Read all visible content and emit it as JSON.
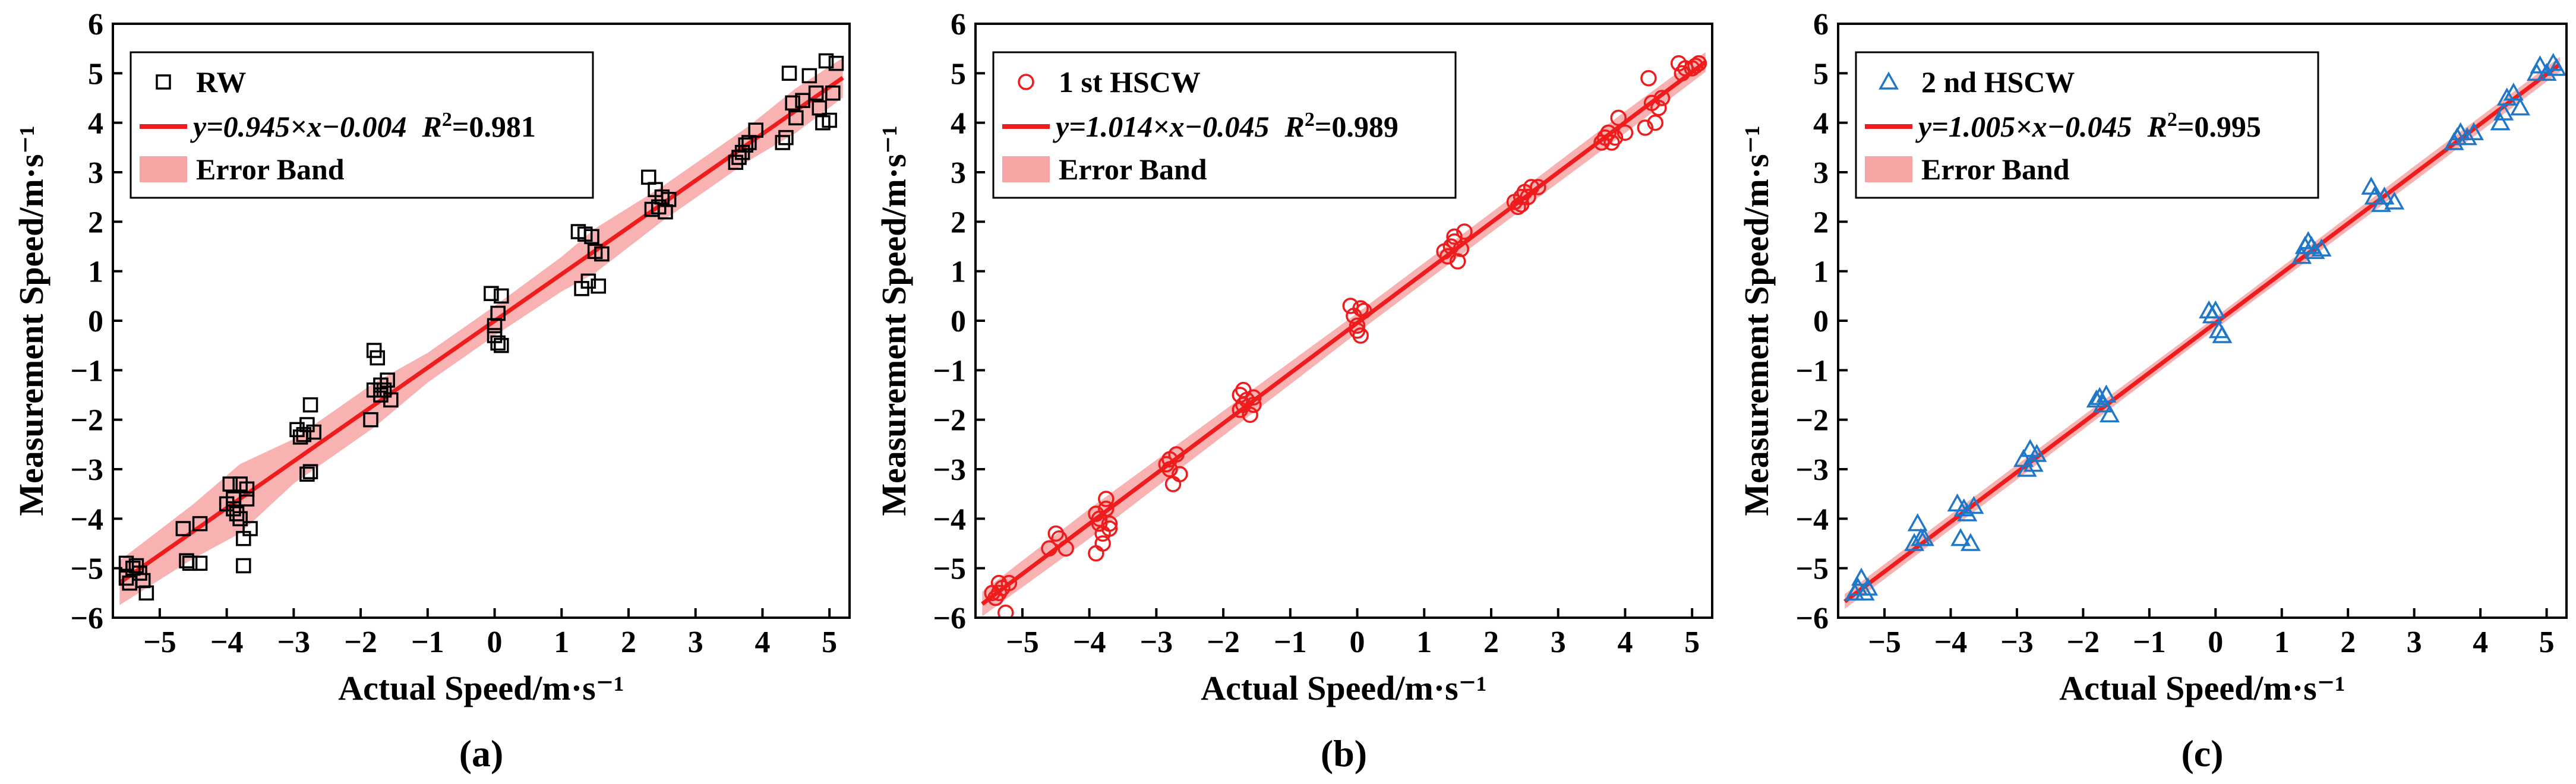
{
  "chart_data": [
    {
      "type": "scatter",
      "panel_label": "(a)",
      "xlabel": "Actual Speed/m·s⁻¹",
      "ylabel": "Measurement Speed/m·s⁻¹",
      "xlim": [
        -5.7,
        5.3
      ],
      "ylim": [
        -6,
        6
      ],
      "xticks": [
        -5,
        -4,
        -3,
        -2,
        -1,
        0,
        1,
        2,
        3,
        4,
        5
      ],
      "yticks": [
        -6,
        -5,
        -4,
        -3,
        -2,
        -1,
        0,
        1,
        2,
        3,
        4,
        5,
        6
      ],
      "grid": false,
      "legend_position": "top-left",
      "marker": "square",
      "colors": {
        "points": "#000000",
        "fit": "#ee1c1c",
        "band": "#f7a5a5"
      },
      "legend": {
        "points": "RW",
        "fit_prefix": "y=0.945×x−0.004",
        "r2_value": "=0.981",
        "band": "Error Band"
      },
      "fit": {
        "slope": 0.945,
        "intercept": -0.004,
        "r2": 0.981
      },
      "band_halfwidth": [
        [
          -5.6,
          0.45
        ],
        [
          -4.5,
          0.55
        ],
        [
          -3.8,
          0.7
        ],
        [
          -3.0,
          0.45
        ],
        [
          -1.8,
          0.45
        ],
        [
          -1.0,
          0.3
        ],
        [
          0.0,
          0.3
        ],
        [
          1.0,
          0.35
        ],
        [
          1.5,
          0.45
        ],
        [
          2.5,
          0.35
        ],
        [
          3.8,
          0.35
        ],
        [
          4.5,
          0.45
        ],
        [
          5.2,
          0.4
        ]
      ],
      "series": [
        {
          "name": "RW",
          "x": [
            -5.5,
            -5.4,
            -5.35,
            -5.3,
            -5.45,
            -5.25,
            -5.5,
            -5.2,
            -4.65,
            -4.55,
            -4.4,
            -4.6,
            -4.4,
            -3.95,
            -3.9,
            -3.85,
            -3.8,
            -3.7,
            -3.75,
            -3.65,
            -4.0,
            -3.9,
            -3.8,
            -3.7,
            -3.75,
            -2.95,
            -2.85,
            -2.8,
            -2.75,
            -2.9,
            -2.7,
            -2.8,
            -2.75,
            -1.8,
            -1.75,
            -1.7,
            -1.65,
            -1.6,
            -1.55,
            -1.8,
            -1.7,
            -1.85,
            -0.05,
            0.0,
            0.05,
            0.1,
            0.0,
            0.1,
            0.05,
            1.25,
            1.35,
            1.45,
            1.5,
            1.6,
            1.4,
            1.55,
            1.3,
            2.3,
            2.4,
            2.45,
            2.55,
            2.6,
            2.5,
            2.35,
            3.6,
            3.7,
            3.75,
            3.65,
            3.8,
            3.9,
            4.3,
            4.35,
            4.4,
            4.45,
            4.5,
            4.6,
            4.7,
            4.8,
            4.85,
            4.9,
            5.0,
            5.1,
            4.95,
            5.05
          ],
          "y": [
            -5.2,
            -5.0,
            -4.95,
            -5.1,
            -5.3,
            -5.25,
            -4.9,
            -5.5,
            -4.2,
            -4.9,
            -4.1,
            -4.85,
            -4.9,
            -3.3,
            -3.6,
            -3.9,
            -3.3,
            -3.4,
            -4.4,
            -4.2,
            -3.7,
            -3.8,
            -4.0,
            -3.6,
            -4.95,
            -2.2,
            -2.3,
            -2.1,
            -1.7,
            -2.35,
            -2.25,
            -3.1,
            -3.05,
            -0.6,
            -0.75,
            -1.3,
            -1.4,
            -1.2,
            -1.6,
            -1.4,
            -1.5,
            -2.0,
            0.55,
            -0.1,
            0.15,
            0.5,
            -0.3,
            -0.5,
            -0.45,
            1.8,
            1.75,
            1.7,
            1.4,
            1.35,
            0.8,
            0.7,
            0.65,
            2.9,
            2.65,
            2.3,
            2.2,
            2.45,
            2.5,
            2.25,
            3.2,
            3.4,
            3.55,
            3.3,
            3.6,
            3.85,
            3.6,
            3.7,
            5.0,
            4.4,
            4.1,
            4.45,
            4.95,
            4.6,
            4.3,
            4.0,
            4.05,
            5.2,
            5.25,
            4.6
          ]
        }
      ]
    },
    {
      "type": "scatter",
      "panel_label": "(b)",
      "xlabel": "Actual Speed/m·s⁻¹",
      "ylabel": "Measurement Speed/m·s⁻¹",
      "xlim": [
        -5.7,
        5.3
      ],
      "ylim": [
        -6,
        6
      ],
      "xticks": [
        -5,
        -4,
        -3,
        -2,
        -1,
        0,
        1,
        2,
        3,
        4,
        5
      ],
      "yticks": [
        -6,
        -5,
        -4,
        -3,
        -2,
        -1,
        0,
        1,
        2,
        3,
        4,
        5,
        6
      ],
      "grid": false,
      "legend_position": "top-left",
      "marker": "circle",
      "colors": {
        "points": "#ee1c1c",
        "fit": "#ee1c1c",
        "band": "#f7a5a5"
      },
      "legend": {
        "points": "1 st HSCW",
        "fit_prefix": "y=1.014×x−0.045",
        "r2_value": "=0.989",
        "band": "Error Band"
      },
      "fit": {
        "slope": 1.014,
        "intercept": -0.045,
        "r2": 0.989
      },
      "band_halfwidth": [
        [
          -5.6,
          0.25
        ],
        [
          -4.0,
          0.3
        ],
        [
          -2.0,
          0.25
        ],
        [
          0.0,
          0.2
        ],
        [
          2.0,
          0.2
        ],
        [
          4.0,
          0.22
        ],
        [
          5.2,
          0.2
        ]
      ],
      "series": [
        {
          "name": "1 st HSCW",
          "x": [
            -5.45,
            -5.4,
            -5.35,
            -5.3,
            -5.25,
            -5.2,
            -5.35,
            -4.6,
            -4.45,
            -4.35,
            -4.5,
            -3.9,
            -3.85,
            -3.8,
            -3.75,
            -3.7,
            -3.9,
            -3.8,
            -3.75,
            -3.7,
            -3.85,
            -2.85,
            -2.8,
            -2.75,
            -2.7,
            -2.65,
            -2.8,
            -1.75,
            -1.7,
            -1.65,
            -1.6,
            -1.55,
            -1.7,
            -1.75,
            -1.55,
            -0.1,
            -0.05,
            0.0,
            0.05,
            0.1,
            0.05,
            0.0,
            1.3,
            1.35,
            1.4,
            1.45,
            1.5,
            1.55,
            1.45,
            1.6,
            2.35,
            2.4,
            2.45,
            2.5,
            2.55,
            2.6,
            2.7,
            2.45,
            3.65,
            3.7,
            3.75,
            3.8,
            3.85,
            3.9,
            4.0,
            4.3,
            4.35,
            4.4,
            4.45,
            4.5,
            4.55,
            4.8,
            4.85,
            4.9,
            5.0,
            5.05,
            5.1
          ],
          "y": [
            -5.5,
            -5.6,
            -5.3,
            -5.4,
            -5.9,
            -5.3,
            -5.5,
            -4.6,
            -4.4,
            -4.6,
            -4.3,
            -3.9,
            -4.1,
            -4.3,
            -3.8,
            -4.2,
            -4.7,
            -4.5,
            -3.6,
            -4.1,
            -4.0,
            -2.9,
            -2.8,
            -3.3,
            -2.7,
            -3.1,
            -3.0,
            -1.5,
            -1.7,
            -1.6,
            -1.9,
            -1.7,
            -1.4,
            -1.8,
            -1.55,
            0.3,
            0.1,
            -0.1,
            -0.3,
            0.2,
            0.25,
            -0.2,
            1.4,
            1.3,
            1.5,
            1.6,
            1.2,
            1.45,
            1.7,
            1.8,
            2.4,
            2.3,
            2.5,
            2.6,
            2.5,
            2.7,
            2.7,
            2.35,
            3.6,
            3.7,
            3.8,
            3.6,
            3.7,
            4.1,
            3.8,
            3.9,
            4.9,
            4.4,
            4.0,
            4.3,
            4.5,
            5.2,
            5.0,
            5.1,
            5.1,
            5.15,
            5.2
          ]
        }
      ]
    },
    {
      "type": "scatter",
      "panel_label": "(c)",
      "xlabel": "Actual Speed/m·s⁻¹",
      "ylabel": "Measurement Speed/m·s⁻¹",
      "xlim": [
        -5.7,
        5.3
      ],
      "ylim": [
        -6,
        6
      ],
      "xticks": [
        -5,
        -4,
        -3,
        -2,
        -1,
        0,
        1,
        2,
        3,
        4,
        5
      ],
      "yticks": [
        -6,
        -5,
        -4,
        -3,
        -2,
        -1,
        0,
        1,
        2,
        3,
        4,
        5,
        6
      ],
      "grid": false,
      "legend_position": "top-left",
      "marker": "triangle",
      "colors": {
        "points": "#1f77c8",
        "fit": "#ee1c1c",
        "band": "#f7a5a5"
      },
      "legend": {
        "points": "2 nd HSCW",
        "fit_prefix": "y=1.005×x−0.045",
        "r2_value": "=0.995",
        "band": "Error Band"
      },
      "fit": {
        "slope": 1.005,
        "intercept": -0.045,
        "r2": 0.995
      },
      "band_halfwidth": [
        [
          -5.6,
          0.15
        ],
        [
          -3.0,
          0.15
        ],
        [
          0.0,
          0.12
        ],
        [
          3.0,
          0.15
        ],
        [
          5.2,
          0.15
        ]
      ],
      "series": [
        {
          "name": "2 nd HSCW",
          "x": [
            -5.45,
            -5.4,
            -5.35,
            -5.3,
            -5.25,
            -4.55,
            -4.5,
            -4.45,
            -4.4,
            -3.9,
            -3.85,
            -3.8,
            -3.75,
            -3.7,
            -3.65,
            -2.9,
            -2.85,
            -2.8,
            -2.75,
            -2.7,
            -1.8,
            -1.75,
            -1.7,
            -1.65,
            -1.6,
            -0.1,
            -0.05,
            0.0,
            0.05,
            0.1,
            1.3,
            1.35,
            1.4,
            1.45,
            1.5,
            1.6,
            2.35,
            2.4,
            2.5,
            2.55,
            2.7,
            3.6,
            3.65,
            3.7,
            3.8,
            3.9,
            4.3,
            4.35,
            4.4,
            4.5,
            4.6,
            4.85,
            4.9,
            5.0,
            5.1,
            5.15
          ],
          "y": [
            -5.5,
            -5.4,
            -5.2,
            -5.5,
            -5.4,
            -4.5,
            -4.1,
            -4.4,
            -4.4,
            -3.7,
            -4.4,
            -3.8,
            -3.9,
            -4.5,
            -3.75,
            -2.8,
            -3.0,
            -2.6,
            -2.9,
            -2.7,
            -1.6,
            -1.55,
            -1.7,
            -1.5,
            -1.9,
            0.2,
            0.1,
            0.2,
            -0.2,
            -0.3,
            1.3,
            1.5,
            1.6,
            1.5,
            1.4,
            1.45,
            2.7,
            2.5,
            2.35,
            2.5,
            2.4,
            3.6,
            3.7,
            3.8,
            3.7,
            3.8,
            4.0,
            4.2,
            4.5,
            4.6,
            4.3,
            5.0,
            5.15,
            5.0,
            5.2,
            5.1
          ]
        }
      ]
    }
  ]
}
